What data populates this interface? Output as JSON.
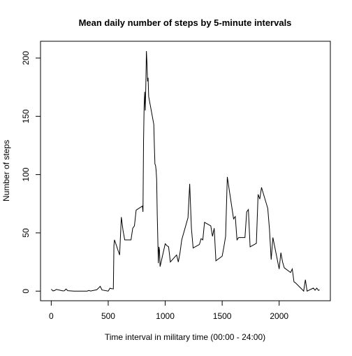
{
  "chart_data": {
    "type": "line",
    "title": "Mean daily number of steps by 5-minute intervals",
    "x_label": "Time interval in military time (00:00 - 24:00)",
    "y_label": "Number of steps",
    "x": [
      0,
      15,
      30,
      45,
      100,
      115,
      130,
      145,
      200,
      215,
      230,
      245,
      300,
      315,
      330,
      345,
      400,
      415,
      430,
      445,
      500,
      515,
      530,
      545,
      550,
      555,
      600,
      615,
      630,
      645,
      700,
      715,
      730,
      745,
      800,
      805,
      810,
      815,
      820,
      825,
      830,
      835,
      840,
      845,
      850,
      855,
      900,
      905,
      910,
      915,
      920,
      925,
      930,
      935,
      940,
      945,
      950,
      955,
      1000,
      1015,
      1030,
      1045,
      1100,
      1115,
      1130,
      1145,
      1200,
      1215,
      1230,
      1245,
      1300,
      1315,
      1330,
      1345,
      1400,
      1415,
      1430,
      1445,
      1500,
      1515,
      1530,
      1545,
      1600,
      1615,
      1630,
      1645,
      1700,
      1715,
      1730,
      1745,
      1800,
      1815,
      1830,
      1845,
      1900,
      1915,
      1930,
      1945,
      2000,
      2015,
      2030,
      2045,
      2100,
      2115,
      2130,
      2145,
      2200,
      2215,
      2230,
      2245,
      2300,
      2315,
      2330,
      2345,
      2355
    ],
    "series": [
      {
        "name": "steps",
        "color": "#000000",
        "values": [
          1.7,
          0.2,
          0.5,
          1.5,
          0.2,
          0.3,
          1.8,
          0.4,
          0,
          0,
          0,
          0,
          0,
          0,
          0.6,
          0.1,
          1.2,
          2.6,
          4.1,
          1.0,
          0,
          2.5,
          2.1,
          1.9,
          39,
          44,
          31,
          63.5,
          52,
          44,
          44,
          54,
          56,
          69.5,
          73,
          68,
          129,
          158,
          171,
          155,
          177,
          206,
          196,
          180,
          183,
          167,
          143,
          124,
          109,
          108,
          104,
          96,
          66,
          45,
          24,
          38,
          35,
          21,
          40.6,
          39,
          38,
          25,
          31,
          25,
          33,
          44,
          63,
          92,
          54,
          37,
          40,
          45,
          44,
          59,
          56,
          47,
          54,
          26,
          30,
          38,
          47,
          98,
          62,
          64,
          44,
          46,
          46,
          68,
          70,
          38,
          41,
          83,
          79,
          89,
          71,
          53,
          27,
          46,
          19,
          33,
          25,
          20,
          16,
          19,
          8,
          7,
          1.6,
          0,
          9.8,
          0,
          2.6,
          0.8,
          2.6,
          0.6,
          1.1
        ]
      }
    ],
    "xlim": [
      -94.2,
      2449.2
    ],
    "ylim": [
      -8.25,
      214.4
    ],
    "xticks": [
      0,
      500,
      1000,
      1500,
      2000
    ],
    "yticks": [
      0,
      50,
      100,
      150,
      200
    ]
  }
}
